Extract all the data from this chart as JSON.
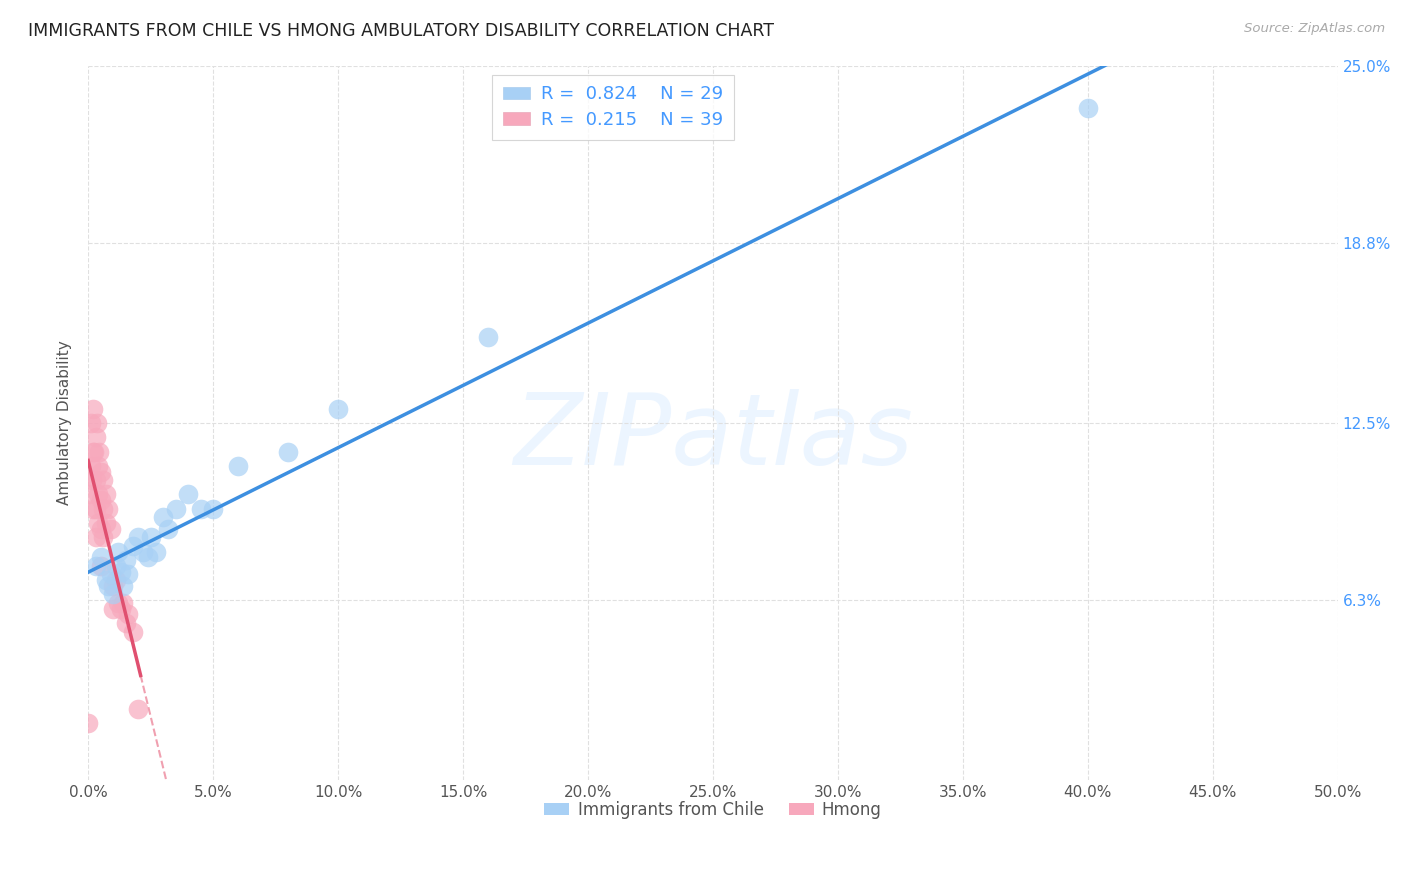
{
  "title": "IMMIGRANTS FROM CHILE VS HMONG AMBULATORY DISABILITY CORRELATION CHART",
  "source": "Source: ZipAtlas.com",
  "ylabel": "Ambulatory Disability",
  "watermark": "ZIPatlas",
  "xlim": [
    0,
    0.5
  ],
  "ylim": [
    0,
    0.25
  ],
  "xticks": [
    0.0,
    0.05,
    0.1,
    0.15,
    0.2,
    0.25,
    0.3,
    0.35,
    0.4,
    0.45,
    0.5
  ],
  "right_ytick_labels": [
    "6.3%",
    "12.5%",
    "18.8%",
    "25.0%"
  ],
  "right_ytick_positions": [
    0.063,
    0.125,
    0.188,
    0.25
  ],
  "chile_color": "#a8d0f5",
  "hmong_color": "#f7a8bc",
  "chile_line_color": "#3d8fe0",
  "hmong_line_color": "#e05070",
  "hmong_dash_color": "#f0a0b0",
  "legend_r_chile": "0.824",
  "legend_n_chile": "29",
  "legend_r_hmong": "0.215",
  "legend_n_hmong": "39",
  "legend_color": "#4499ff",
  "chile_scatter_x": [
    0.003,
    0.005,
    0.007,
    0.008,
    0.009,
    0.01,
    0.011,
    0.012,
    0.013,
    0.014,
    0.015,
    0.016,
    0.018,
    0.02,
    0.022,
    0.024,
    0.025,
    0.027,
    0.03,
    0.032,
    0.035,
    0.04,
    0.045,
    0.05,
    0.06,
    0.08,
    0.1,
    0.16,
    0.4
  ],
  "chile_scatter_y": [
    0.075,
    0.078,
    0.07,
    0.068,
    0.072,
    0.065,
    0.075,
    0.08,
    0.073,
    0.068,
    0.077,
    0.072,
    0.082,
    0.085,
    0.08,
    0.078,
    0.085,
    0.08,
    0.092,
    0.088,
    0.095,
    0.1,
    0.095,
    0.095,
    0.11,
    0.115,
    0.13,
    0.155,
    0.235
  ],
  "hmong_scatter_x": [
    0.0,
    0.0005,
    0.001,
    0.001,
    0.0015,
    0.002,
    0.002,
    0.002,
    0.0025,
    0.003,
    0.003,
    0.003,
    0.003,
    0.0035,
    0.004,
    0.004,
    0.004,
    0.0045,
    0.005,
    0.005,
    0.005,
    0.005,
    0.006,
    0.006,
    0.006,
    0.007,
    0.007,
    0.008,
    0.009,
    0.01,
    0.01,
    0.011,
    0.012,
    0.013,
    0.014,
    0.015,
    0.016,
    0.018,
    0.02
  ],
  "hmong_scatter_y": [
    0.02,
    0.1,
    0.11,
    0.125,
    0.105,
    0.095,
    0.115,
    0.13,
    0.115,
    0.105,
    0.12,
    0.095,
    0.085,
    0.125,
    0.11,
    0.1,
    0.09,
    0.115,
    0.108,
    0.098,
    0.088,
    0.075,
    0.105,
    0.095,
    0.085,
    0.1,
    0.09,
    0.095,
    0.088,
    0.068,
    0.06,
    0.07,
    0.062,
    0.06,
    0.062,
    0.055,
    0.058,
    0.052,
    0.025
  ],
  "background_color": "#ffffff",
  "grid_color": "#e0e0e0"
}
